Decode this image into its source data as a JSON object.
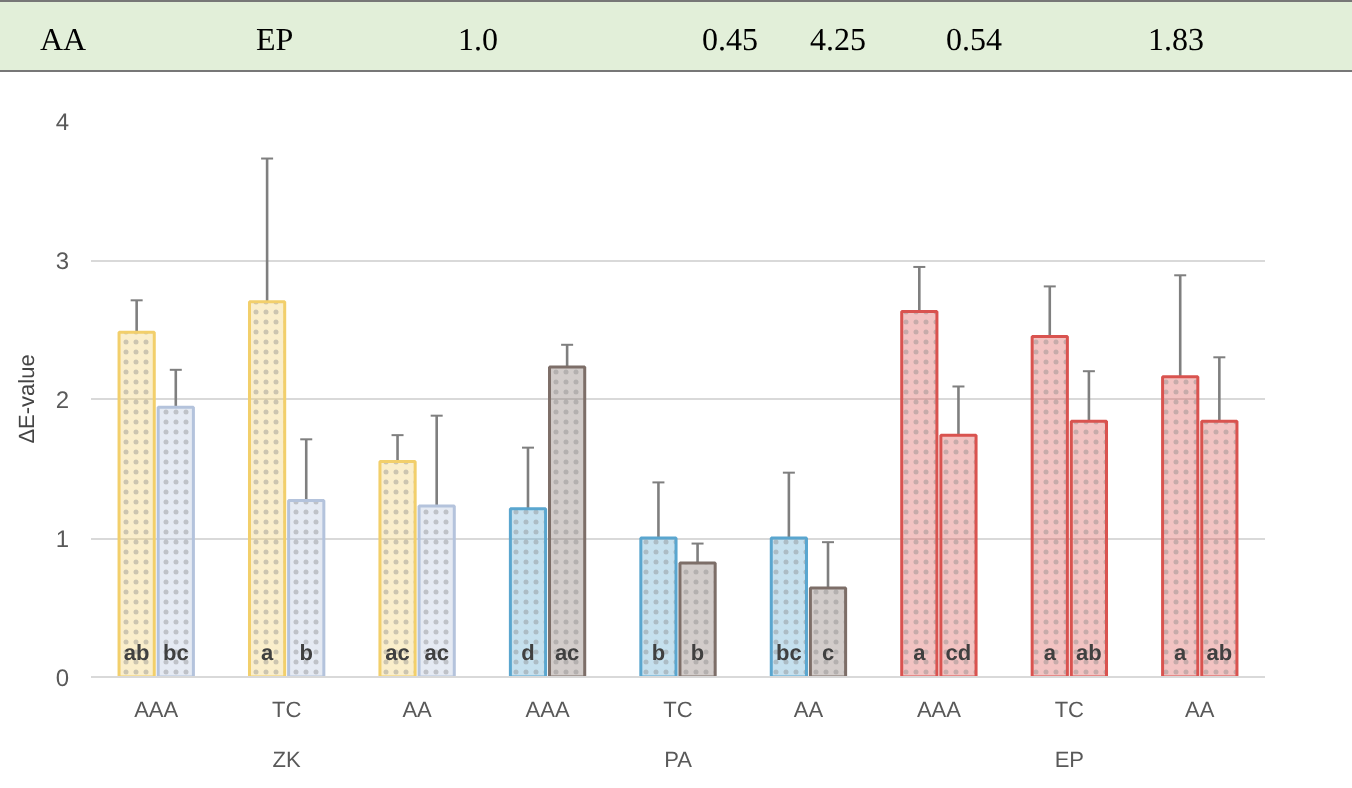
{
  "chart_data": {
    "type": "bar",
    "ylabel": "ΔE-value",
    "categories": [
      "AAA",
      "TC",
      "AA",
      "AAA",
      "TC",
      "AA",
      "AAA",
      "TC",
      "AA"
    ],
    "series": [
      {
        "colors": [
          "#f2cf6b",
          "#f2cf6b",
          "#f2cf6b",
          "#5aa6cf",
          "#5aa6cf",
          "#5aa6cf",
          "#d9534f",
          "#d9534f",
          "#d9534f"
        ],
        "values": [
          2.48,
          2.7,
          1.55,
          1.21,
          1.0,
          1.0,
          2.63,
          2.45,
          2.16
        ],
        "errors": [
          [
            2.48,
            2.71
          ],
          [
            2.7,
            3.73
          ],
          [
            1.55,
            1.74
          ],
          [
            1.21,
            1.65
          ],
          [
            1.0,
            1.4
          ],
          [
            1.0,
            1.47
          ],
          [
            2.63,
            2.95
          ],
          [
            2.45,
            2.81
          ],
          [
            2.16,
            2.89
          ]
        ],
        "value_labels": [
          "ab",
          "a",
          "ac",
          "d",
          "b",
          "bc",
          "a",
          "a",
          "a"
        ]
      },
      {
        "colors": [
          "#b4c3dc",
          "#b4c3dc",
          "#b4c3dc",
          "#7d6e68",
          "#7d6e68",
          "#7d6e68",
          "#d9534f",
          "#d9534f",
          "#d9534f"
        ],
        "values": [
          1.94,
          1.27,
          1.23,
          2.23,
          0.82,
          0.64,
          1.74,
          1.84,
          1.84
        ],
        "errors": [
          [
            1.94,
            2.21
          ],
          [
            1.27,
            1.71
          ],
          [
            1.23,
            1.88
          ],
          [
            2.23,
            2.39
          ],
          [
            0.82,
            0.96
          ],
          [
            0.64,
            0.97
          ],
          [
            1.74,
            2.09
          ],
          [
            1.84,
            2.2
          ],
          [
            1.84,
            2.3
          ]
        ],
        "value_labels": [
          "bc",
          "b",
          "ac",
          "ac",
          "b",
          "c",
          "cd",
          "ab",
          "ab"
        ]
      }
    ],
    "ylim": [
      0,
      4
    ],
    "yticks": [
      0,
      1,
      2,
      3,
      4
    ],
    "grid": "y",
    "annotations": [
      "AA EP 1.0 0.45 4.25 0.54 1.83",
      "ZK",
      "PA",
      "EP"
    ]
  }
}
